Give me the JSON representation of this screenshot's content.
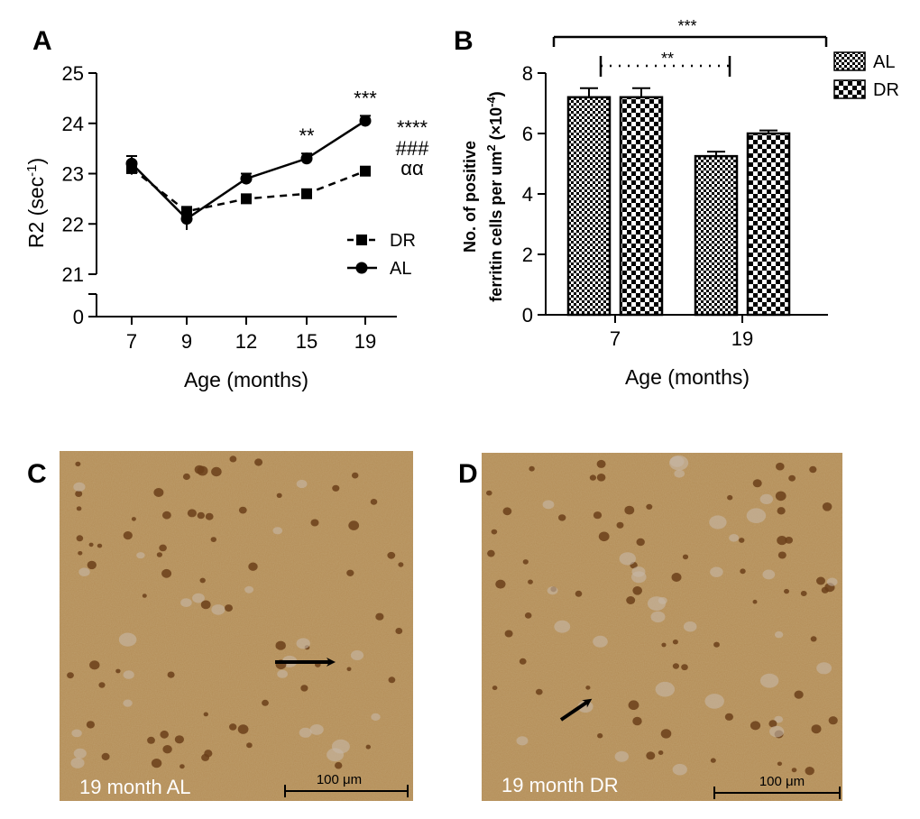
{
  "panels": {
    "a": "A",
    "b": "B",
    "c": "C",
    "d": "D"
  },
  "colors": {
    "ink": "#000000",
    "tissue": "#b08a52",
    "tissue_dark": "#8a6530",
    "cell": "#6b3f1a",
    "microlabel": "#ffffff"
  },
  "chart_data": [
    {
      "type": "line",
      "panel": "A",
      "x": [
        7,
        9,
        12,
        15,
        19
      ],
      "x_tick_labels": [
        "7",
        "9",
        "12",
        "15",
        "19"
      ],
      "y_ticks": [
        21,
        22,
        23,
        24,
        25
      ],
      "y_break_tick": 0,
      "ylim": [
        21,
        25
      ],
      "xlabel": "Age (months)",
      "ylabel_main": "R2 (sec",
      "ylabel_sup": "-1",
      "ylabel_end": ")",
      "series": [
        {
          "name": "DR",
          "marker": "square",
          "line": "dashed",
          "values": [
            23.1,
            22.25,
            22.5,
            22.6,
            23.05
          ],
          "errors": [
            0.12,
            0.08,
            0.06,
            0.06,
            0.08
          ]
        },
        {
          "name": "AL",
          "marker": "circle",
          "line": "solid",
          "values": [
            23.2,
            22.1,
            22.9,
            23.3,
            24.05
          ],
          "errors": [
            0.15,
            0.22,
            0.1,
            0.1,
            0.1
          ]
        }
      ],
      "point_annotations": [
        {
          "x": 15,
          "text": "**"
        },
        {
          "x": 19,
          "text": "***"
        }
      ],
      "side_annotations": [
        "****",
        "###",
        "αα"
      ],
      "legend": "right"
    },
    {
      "type": "bar",
      "panel": "B",
      "categories": [
        "7",
        "19"
      ],
      "series": [
        {
          "name": "AL",
          "pattern": "fine-checker",
          "values": [
            7.2,
            5.25
          ],
          "errors": [
            0.3,
            0.15
          ]
        },
        {
          "name": "DR",
          "pattern": "coarse-checker",
          "values": [
            7.2,
            6.0
          ],
          "errors": [
            0.3,
            0.1
          ]
        }
      ],
      "y_ticks": [
        0,
        2,
        4,
        6,
        8
      ],
      "ylim": [
        0,
        8
      ],
      "xlabel": "Age (months)",
      "ylabel_line1": "No. of positive",
      "ylabel_line2_main": "ferritin cells per um",
      "ylabel_line2_sup": "2",
      "ylabel_line2_mid": " (×10",
      "ylabel_line2_sup2": "-4",
      "ylabel_line2_end": ")",
      "significance": [
        {
          "text": "***",
          "span": "AL 7 – DR 19"
        },
        {
          "text": "**",
          "span": "AL 7 – AL 19"
        }
      ],
      "legend": "top-right"
    }
  ],
  "micrographs": [
    {
      "panel": "C",
      "label": "19 month AL",
      "scale_bar": "100 μm"
    },
    {
      "panel": "D",
      "label": "19 month DR",
      "scale_bar": "100 μm"
    }
  ]
}
